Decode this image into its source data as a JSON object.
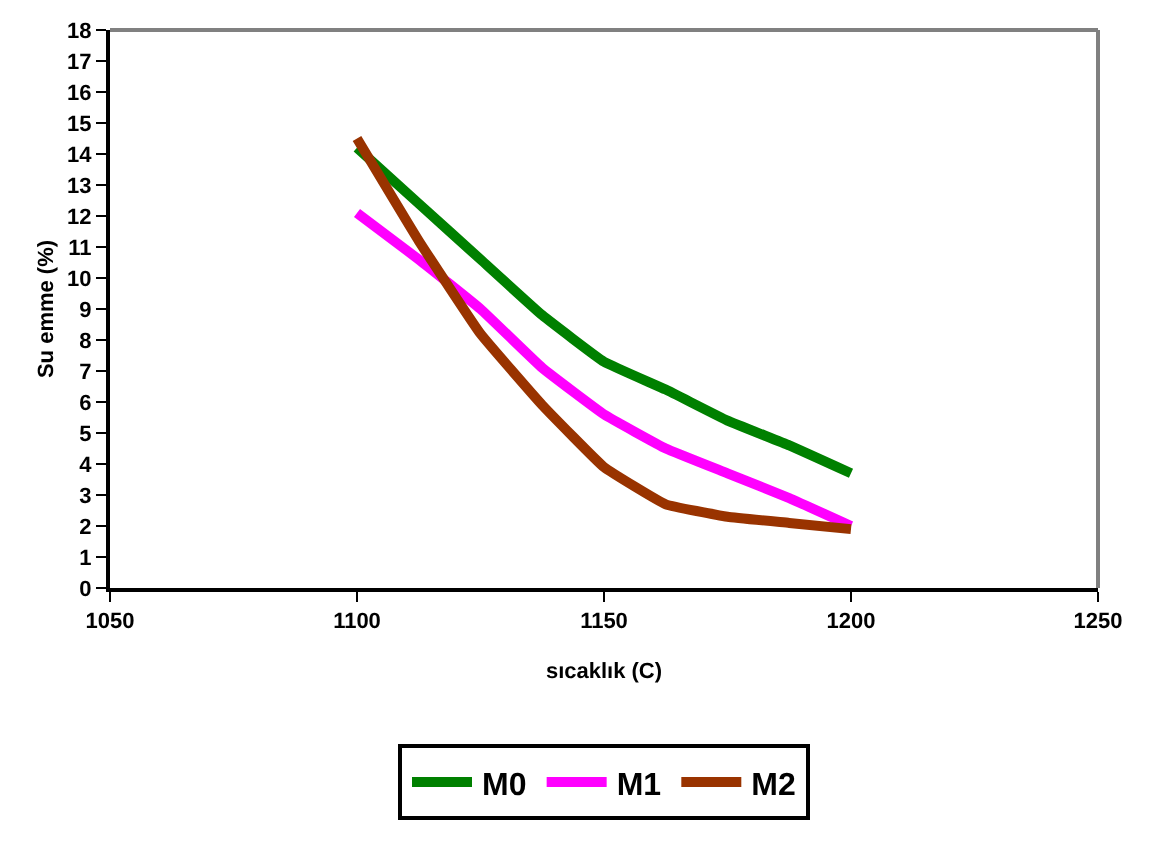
{
  "chart_data": {
    "type": "line",
    "xlabel": "sıcaklık (C)",
    "ylabel": "Su emme (%)",
    "x": [
      1100,
      1112.5,
      1125,
      1137.5,
      1150,
      1162.5,
      1175,
      1187.5,
      1200
    ],
    "series": [
      {
        "name": "M0",
        "color": "#008000",
        "values": [
          14.2,
          12.4,
          10.6,
          8.8,
          7.3,
          6.4,
          5.4,
          4.6,
          3.7
        ]
      },
      {
        "name": "M1",
        "color": "#ff00ff",
        "values": [
          12.1,
          10.6,
          9.0,
          7.1,
          5.6,
          4.5,
          3.7,
          2.9,
          2.0
        ]
      },
      {
        "name": "M2",
        "color": "#993300",
        "values": [
          14.5,
          11.2,
          8.2,
          5.9,
          3.9,
          2.7,
          2.3,
          2.1,
          1.9
        ]
      }
    ],
    "xlim": [
      1050,
      1250
    ],
    "xticks": [
      1050,
      1100,
      1150,
      1200,
      1250
    ],
    "ylim": [
      0,
      18
    ],
    "yticks": [
      0,
      1,
      2,
      3,
      4,
      5,
      6,
      7,
      8,
      9,
      10,
      11,
      12,
      13,
      14,
      15,
      16,
      17,
      18
    ],
    "grid": false,
    "legend": "bottom",
    "marker": "none",
    "line_style": "solid"
  }
}
